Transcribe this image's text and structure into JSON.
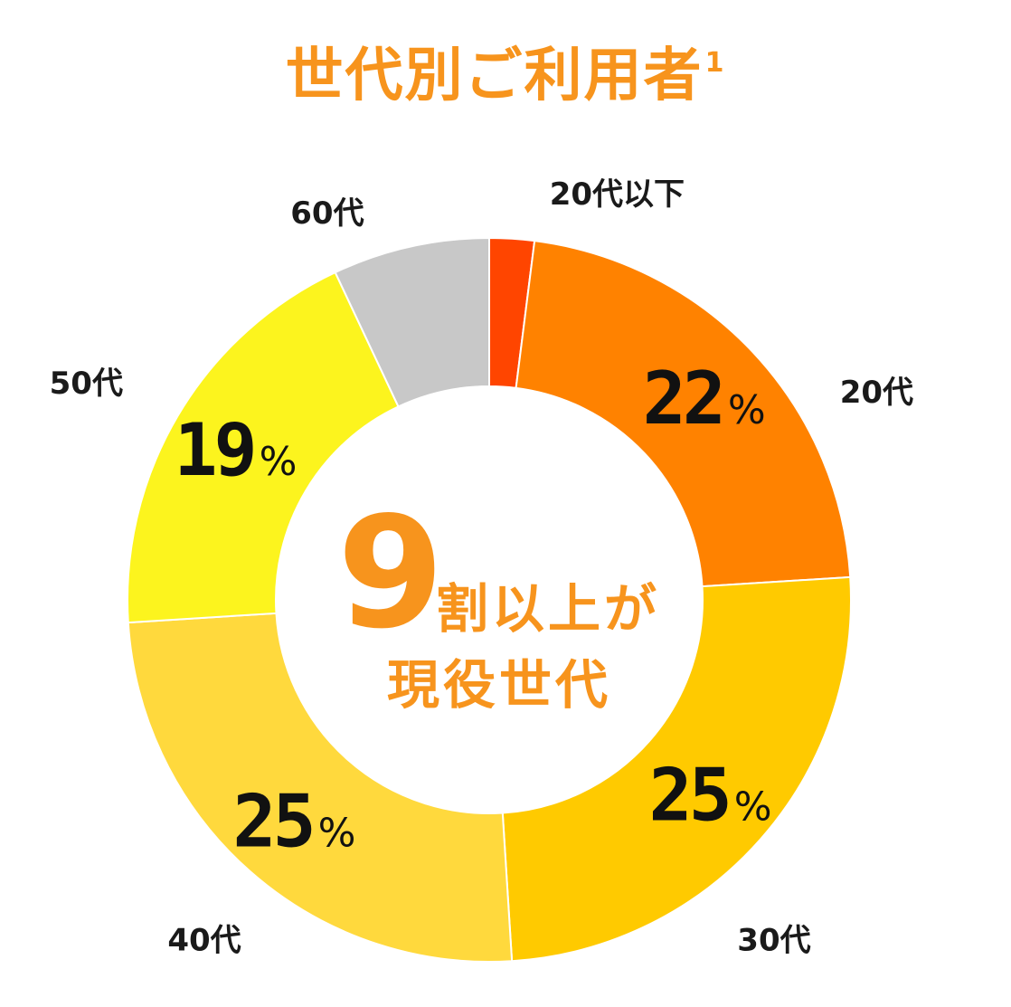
{
  "colors": {
    "accent": "#F7941D",
    "label": "#1a1a1a"
  },
  "title": {
    "text": "世代別ご利用者",
    "superscript": "1"
  },
  "center": {
    "big": "9",
    "line1": "割以上が",
    "line2": "現役世代"
  },
  "chart_data": {
    "type": "pie",
    "title": "世代別ご利用者",
    "unit": "%",
    "slices": [
      {
        "name": "20代以下",
        "value": 2,
        "color": "#FF4500",
        "label": ""
      },
      {
        "name": "20代",
        "value": 22,
        "color": "#FF8200",
        "label": "22"
      },
      {
        "name": "30代",
        "value": 25,
        "color": "#FFCA00",
        "label": "25"
      },
      {
        "name": "40代",
        "value": 25,
        "color": "#FFD93D",
        "label": "25"
      },
      {
        "name": "50代",
        "value": 19,
        "color": "#FCF41E",
        "label": "19"
      },
      {
        "name": "60代",
        "value": 7,
        "color": "#C8C8C8",
        "label": ""
      }
    ]
  }
}
